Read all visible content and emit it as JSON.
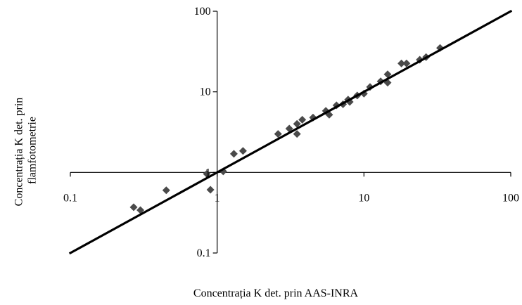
{
  "chart_data": {
    "type": "scatter",
    "title": "",
    "xlabel": "Concentrația K det. prin AAS-INRA",
    "ylabel": [
      "Concentrația K det. prin",
      "flamfotometrie"
    ],
    "x_scale": "log",
    "y_scale": "log",
    "xlim": [
      0.1,
      100
    ],
    "ylim": [
      0.1,
      100
    ],
    "x_ticks": [
      {
        "value": 0.1,
        "label": "0.1"
      },
      {
        "value": 1,
        "label": "1"
      },
      {
        "value": 10,
        "label": "10"
      },
      {
        "value": 100,
        "label": "100"
      }
    ],
    "y_ticks": [
      {
        "value": 0.1,
        "label": "0.1"
      },
      {
        "value": 1,
        "label": "1"
      },
      {
        "value": 10,
        "label": "10"
      },
      {
        "value": 100,
        "label": "100"
      }
    ],
    "axes_cross_at": {
      "x": 1,
      "y": 1
    },
    "grid": false,
    "legend": "none",
    "colors": {
      "points": "#4a4a4a",
      "line": "#000000"
    },
    "series": [
      {
        "kind": "points",
        "x": [
          0.27,
          0.3,
          0.45,
          0.85,
          0.9,
          1.1,
          1.3,
          1.5,
          2.6,
          3.1,
          3.5,
          3.5,
          3.8,
          4.5,
          5.5,
          5.8,
          6.5,
          7.2,
          7.8,
          8.0,
          9.0,
          10.0,
          11.0,
          13.0,
          14.5,
          14.5,
          18.0,
          19.5,
          24.0,
          26.5,
          33.0
        ],
        "y": [
          0.37,
          0.34,
          0.6,
          0.96,
          0.61,
          1.03,
          1.7,
          1.85,
          3.0,
          3.5,
          3.0,
          4.0,
          4.5,
          4.8,
          5.8,
          5.2,
          6.8,
          7.0,
          8.0,
          7.5,
          9.0,
          9.5,
          11.5,
          13.5,
          13.0,
          16.5,
          22.5,
          22.5,
          25.0,
          27.0,
          35.0
        ]
      },
      {
        "kind": "line",
        "x": [
          0.1,
          100
        ],
        "y": [
          0.1,
          100
        ]
      }
    ]
  }
}
